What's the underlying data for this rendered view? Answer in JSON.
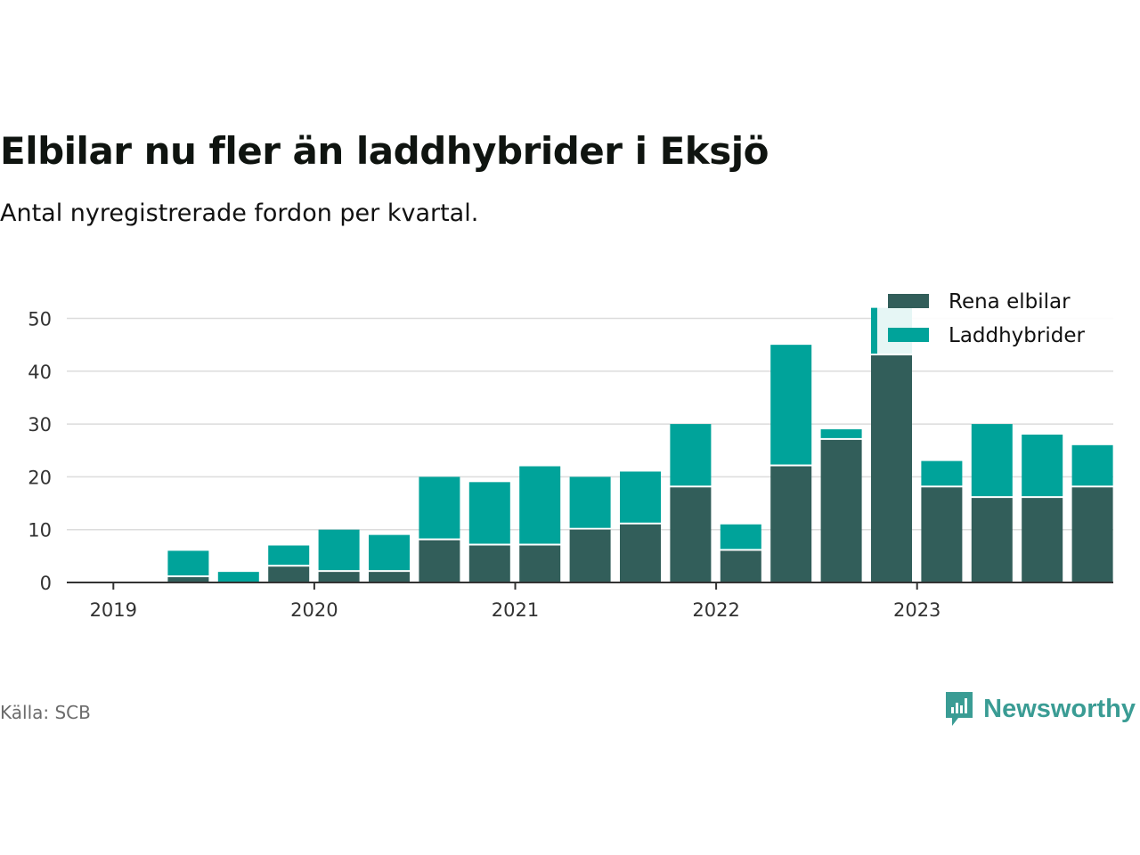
{
  "title": "Elbilar nu fler än laddhybrider i Eksjö",
  "subtitle": "Antal nyregistrerade fordon per kvartal.",
  "source": "Källa: SCB",
  "brand": {
    "name": "Newsworthy",
    "color": "#3a9c94",
    "icon": "newsworthy-logo-icon"
  },
  "chart_data": {
    "type": "bar",
    "stacked": true,
    "title": "Elbilar nu fler än laddhybrider i Eksjö",
    "subtitle": "Antal nyregistrerade fordon per kvartal.",
    "xlabel": "",
    "ylabel": "",
    "ylim": [
      0,
      55
    ],
    "y_ticks": [
      0,
      10,
      20,
      30,
      40,
      50
    ],
    "grid": true,
    "legend_position": "top-right",
    "categories": [
      "2019 Q1",
      "2019 Q2",
      "2019 Q3",
      "2019 Q4",
      "2020 Q1",
      "2020 Q2",
      "2020 Q3",
      "2020 Q4",
      "2021 Q1",
      "2021 Q2",
      "2021 Q3",
      "2021 Q4",
      "2022 Q1",
      "2022 Q2",
      "2022 Q3",
      "2022 Q4",
      "2023 Q1",
      "2023 Q2",
      "2023 Q3",
      "2023 Q4"
    ],
    "x_tick_labels": [
      {
        "label": "2019",
        "index": 0
      },
      {
        "label": "2020",
        "index": 4
      },
      {
        "label": "2021",
        "index": 8
      },
      {
        "label": "2022",
        "index": 12
      },
      {
        "label": "2023",
        "index": 16
      }
    ],
    "series": [
      {
        "name": "Rena elbilar",
        "color": "#325e5a",
        "values": [
          0,
          1,
          0,
          3,
          2,
          2,
          8,
          7,
          7,
          10,
          11,
          18,
          6,
          22,
          27,
          43,
          18,
          16,
          16,
          18
        ]
      },
      {
        "name": "Laddhybrider",
        "color": "#00a39a",
        "values": [
          0,
          5,
          2,
          4,
          8,
          7,
          12,
          12,
          15,
          10,
          10,
          12,
          5,
          23,
          2,
          9,
          5,
          14,
          12,
          8
        ]
      }
    ]
  }
}
